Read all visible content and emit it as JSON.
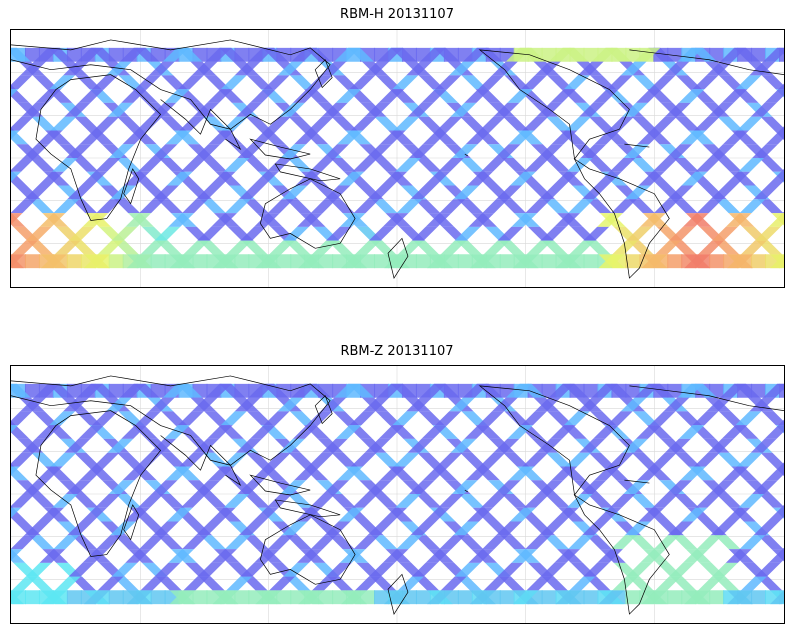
{
  "panels": [
    {
      "title": "RBM-H 20131107",
      "colors": {
        "low": "#6a6aee",
        "mid": "#5fb8ff",
        "cyan": "#5de6f2",
        "yellow": "#e7f56a",
        "orange": "#f6b06a",
        "red": "#ef6a6a"
      },
      "hot_regions": [
        "south-atlantic",
        "south-west-indian",
        "north-atlantic-top"
      ]
    },
    {
      "title": "RBM-Z 20131107",
      "colors": {
        "low": "#6a6aee",
        "mid": "#5fb8ff",
        "cyan": "#5de6f2",
        "yellow": "#e7f56a"
      },
      "hot_regions": [
        "south-atlantic-mild",
        "south-pacific-mild"
      ]
    }
  ],
  "map": {
    "projection": "equirectangular",
    "gridlines": true,
    "coastlines": true,
    "track_pattern": "satellite orbit swaths"
  }
}
